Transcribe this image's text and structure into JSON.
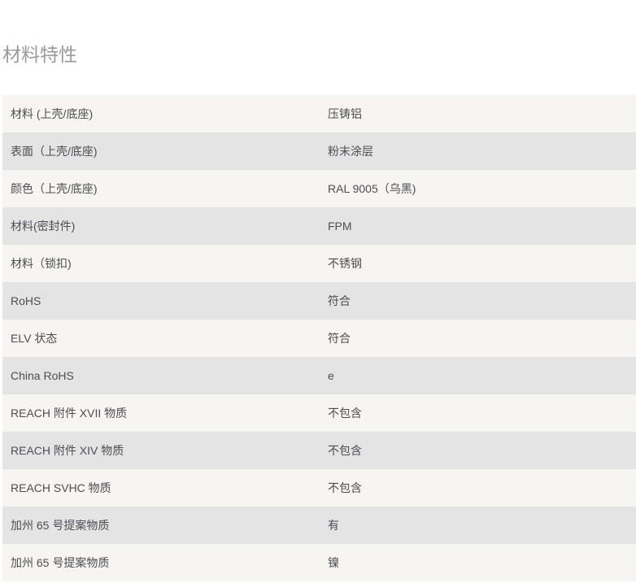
{
  "section_title": "材料特性",
  "rows": [
    {
      "label": "材料 (上壳/底座)",
      "value": "压铸铝"
    },
    {
      "label": "表面（上壳/底座)",
      "value": "粉末涂层"
    },
    {
      "label": "颜色（上壳/底座)",
      "value": "RAL 9005（乌黑)"
    },
    {
      "label": "材料(密封件)",
      "value": "FPM"
    },
    {
      "label": "材料（锁扣)",
      "value": "不锈钢"
    },
    {
      "label": "RoHS",
      "value": "符合"
    },
    {
      "label": "ELV 状态",
      "value": "符合"
    },
    {
      "label": "China RoHS",
      "value": "e"
    },
    {
      "label": "REACH 附件 XVII 物质",
      "value": "不包含"
    },
    {
      "label": "REACH 附件 XIV 物质",
      "value": "不包含"
    },
    {
      "label": "REACH SVHC 物质",
      "value": "不包含"
    },
    {
      "label": "加州 65 号提案物质",
      "value": "有"
    },
    {
      "label": "加州 65 号提案物质",
      "value": "镍"
    }
  ]
}
